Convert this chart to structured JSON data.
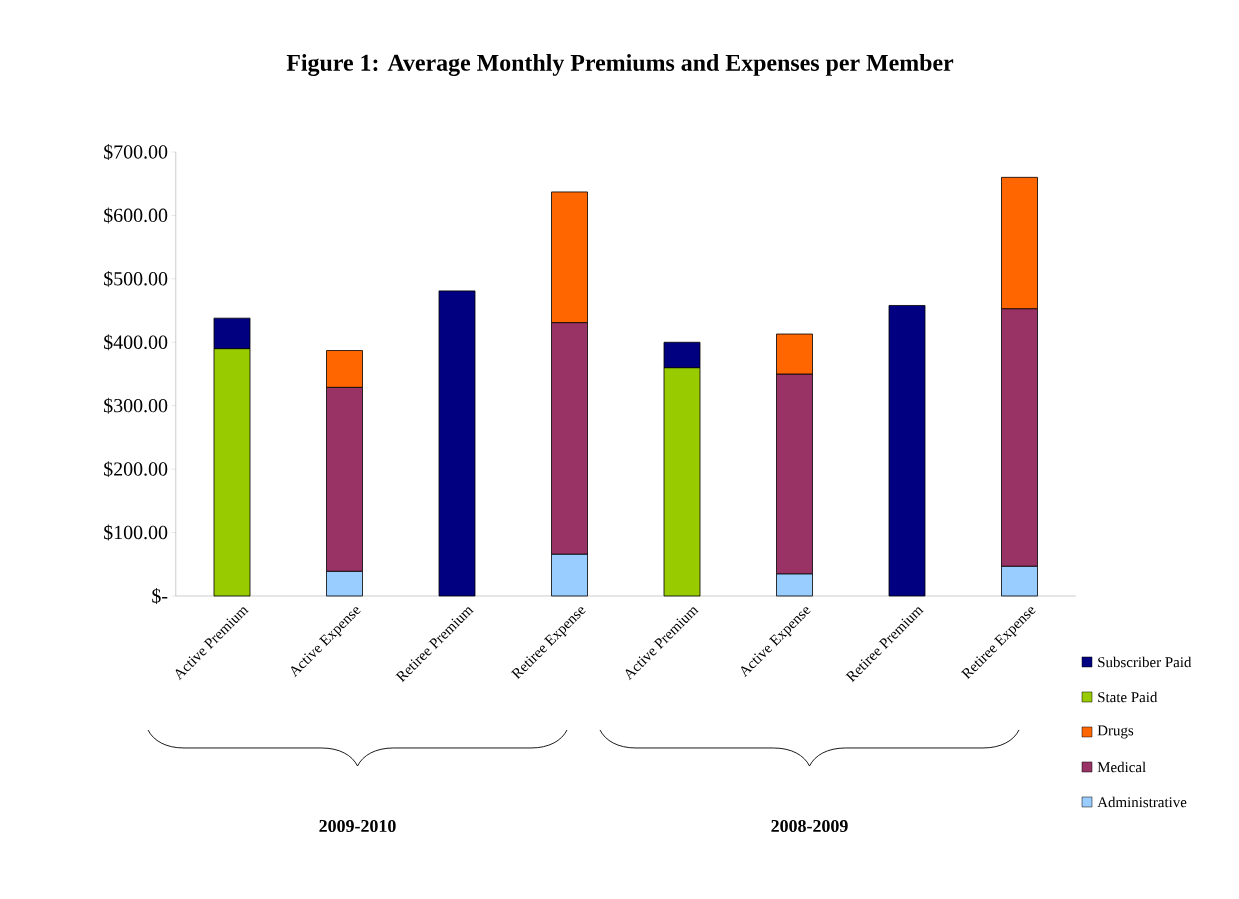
{
  "chart_data": {
    "type": "bar",
    "title": "Figure 1: Average Monthly Premiums and Expenses per Member",
    "categories": [
      "Active Premium",
      "Active Expense",
      "Retiree Premium",
      "Retiree Expense",
      "Active Premium",
      "Active Expense",
      "Retiree Premium",
      "Retiree Expense"
    ],
    "stacked": true,
    "series": [
      {
        "name": "Administrative",
        "color": "#99ccff",
        "values": [
          null,
          39,
          null,
          66,
          null,
          35,
          null,
          47
        ]
      },
      {
        "name": "Medical",
        "color": "#993366",
        "values": [
          null,
          290,
          null,
          365,
          null,
          315,
          null,
          406
        ]
      },
      {
        "name": "Drugs",
        "color": "#ff6600",
        "values": [
          null,
          58,
          null,
          206,
          null,
          63,
          null,
          207
        ]
      },
      {
        "name": "State Paid",
        "color": "#99cc00",
        "values": [
          390,
          null,
          null,
          null,
          360,
          null,
          null,
          null
        ]
      },
      {
        "name": "Subscriber Paid",
        "color": "#000080",
        "values": [
          48,
          null,
          481,
          null,
          40,
          null,
          458,
          null
        ]
      }
    ],
    "ylim": [
      0,
      700
    ],
    "yticks": [
      {
        "value": 0,
        "label": "$-"
      },
      {
        "value": 100,
        "label": "$100.00"
      },
      {
        "value": 200,
        "label": "$200.00"
      },
      {
        "value": 300,
        "label": "$300.00"
      },
      {
        "value": 400,
        "label": "$400.00"
      },
      {
        "value": 500,
        "label": "$500.00"
      },
      {
        "value": 600,
        "label": "$600.00"
      },
      {
        "value": 700,
        "label": "$700.00"
      }
    ],
    "legend": "right",
    "grid": false,
    "annotations": [
      "2009-2010",
      "2008-2009"
    ]
  }
}
